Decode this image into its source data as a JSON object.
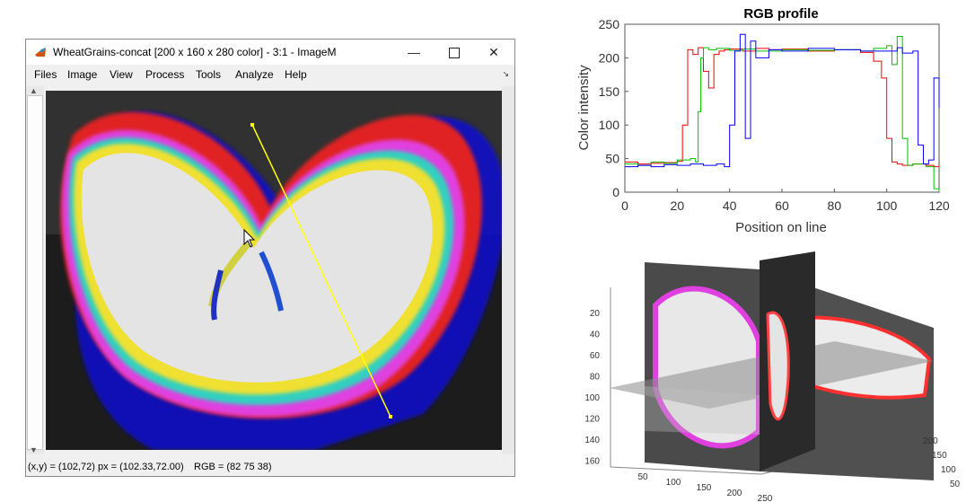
{
  "window": {
    "title": "WheatGrains-concat [200 x 160 x 280 color] - 3:1 - ImageM",
    "minimize_icon": "minimize-icon",
    "maximize_icon": "maximize-icon",
    "close_icon": "close-icon"
  },
  "menu": [
    "Files",
    "Image",
    "View",
    "Process",
    "Tools",
    "Analyze",
    "Help"
  ],
  "status": {
    "coords": "(x,y) = (102,72) px = (102.33,72.00)",
    "rgb": "RGB = (82 75 38)"
  },
  "profile_line": {
    "label": "line-profile-selection",
    "color": "#ffff00"
  },
  "chart_data": [
    {
      "type": "line",
      "title": "RGB profile",
      "xlabel": "Position on line",
      "ylabel": "Color intensity",
      "xlim": [
        0,
        120
      ],
      "ylim": [
        0,
        250
      ],
      "xticks": [
        0,
        20,
        40,
        60,
        80,
        100,
        120
      ],
      "yticks": [
        0,
        50,
        100,
        150,
        200,
        250
      ],
      "grid": false,
      "series": [
        {
          "color": "#ff0000",
          "x": [
            0,
            5,
            10,
            15,
            20,
            22,
            24,
            26,
            28,
            30,
            32,
            34,
            36,
            38,
            40,
            45,
            50,
            55,
            60,
            70,
            80,
            90,
            95,
            98,
            100,
            102,
            104,
            106,
            110,
            115,
            118,
            120
          ],
          "y": [
            45,
            42,
            43,
            44,
            46,
            100,
            212,
            205,
            215,
            180,
            155,
            205,
            210,
            212,
            213,
            210,
            214,
            212,
            213,
            210,
            212,
            208,
            195,
            170,
            80,
            45,
            42,
            40,
            42,
            40,
            38,
            40
          ]
        },
        {
          "color": "#00c000",
          "x": [
            0,
            5,
            10,
            15,
            20,
            25,
            27,
            28,
            29,
            30,
            32,
            35,
            40,
            45,
            50,
            60,
            70,
            80,
            90,
            95,
            100,
            102,
            104,
            106,
            108,
            110,
            115,
            118,
            120
          ],
          "y": [
            42,
            40,
            45,
            43,
            48,
            50,
            45,
            120,
            200,
            215,
            212,
            214,
            211,
            213,
            210,
            212,
            211,
            212,
            210,
            214,
            218,
            190,
            232,
            80,
            40,
            42,
            38,
            5,
            2
          ]
        },
        {
          "color": "#0000ff",
          "x": [
            0,
            5,
            10,
            15,
            20,
            25,
            30,
            35,
            38,
            40,
            42,
            44,
            46,
            48,
            50,
            55,
            60,
            70,
            80,
            90,
            100,
            104,
            106,
            110,
            112,
            114,
            116,
            118,
            120
          ],
          "y": [
            38,
            40,
            38,
            41,
            40,
            42,
            40,
            42,
            38,
            100,
            210,
            235,
            80,
            225,
            200,
            212,
            210,
            214,
            212,
            210,
            210,
            215,
            207,
            210,
            70,
            42,
            48,
            170,
            125
          ]
        }
      ]
    },
    {
      "type": "other",
      "title": "",
      "yticks": [
        20,
        40,
        60,
        80,
        100,
        120,
        140,
        160
      ],
      "xticks": [
        50,
        100,
        150,
        200,
        250
      ],
      "zticks": [
        50,
        100,
        150,
        200
      ]
    }
  ]
}
